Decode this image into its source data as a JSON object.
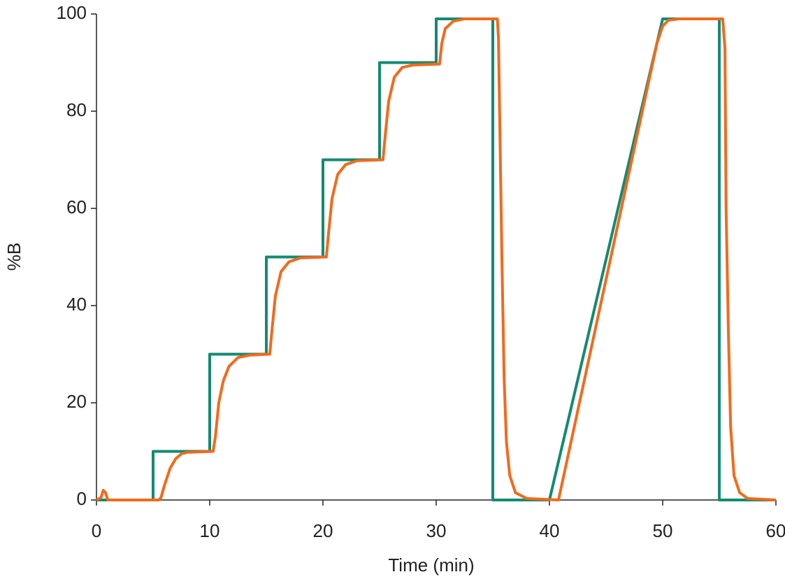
{
  "chart_data": {
    "type": "line",
    "xlabel": "Time (min)",
    "ylabel": "%B",
    "xlim": [
      0,
      60
    ],
    "xticks": [
      0,
      10,
      20,
      30,
      40,
      50,
      60
    ],
    "ylim": [
      0,
      100
    ],
    "yticks": [
      0,
      20,
      40,
      60,
      80,
      100
    ],
    "grid": false,
    "series": [
      {
        "color": "#148a72",
        "x": [
          0,
          5,
          5,
          10,
          10,
          15,
          15,
          20,
          20,
          25,
          25,
          30,
          30,
          35,
          35,
          40,
          50,
          55,
          55,
          60
        ],
        "values": [
          0,
          0,
          10,
          10,
          30,
          30,
          50,
          50,
          70,
          70,
          90,
          90,
          99,
          99,
          0,
          0,
          99,
          99,
          0,
          0
        ]
      },
      {
        "color": "#f26a1b",
        "x": [
          0,
          0.4,
          0.6,
          0.8,
          1.0,
          5.5,
          5.7,
          6,
          6.5,
          7,
          7.5,
          8,
          10.3,
          10.5,
          10.8,
          11.2,
          11.7,
          12.5,
          13.5,
          15.3,
          15.5,
          15.8,
          16.3,
          17,
          18,
          20.3,
          20.5,
          20.8,
          21.3,
          22,
          23,
          25.3,
          25.5,
          25.8,
          26.3,
          27,
          28,
          30.3,
          30.5,
          30.8,
          31.5,
          32.5,
          35.4,
          35.5,
          35.6,
          35.8,
          36,
          36.2,
          36.5,
          37,
          38,
          40.8,
          49.5,
          50,
          50.5,
          51.5,
          55.3,
          55.5,
          55.6,
          55.8,
          56,
          56.3,
          56.8,
          57.5,
          60
        ],
        "values": [
          0,
          0.5,
          2,
          1.5,
          0,
          0,
          0.5,
          3,
          6.5,
          8.5,
          9.5,
          9.8,
          10,
          13,
          20,
          24.5,
          27.5,
          29.3,
          29.8,
          30,
          35,
          42,
          47,
          49,
          49.8,
          50,
          55,
          62,
          67,
          69,
          69.8,
          70,
          75,
          82,
          87,
          89,
          89.5,
          89.7,
          94,
          97,
          98.5,
          99,
          99,
          95,
          80,
          50,
          25,
          12,
          5,
          1.5,
          0.3,
          0,
          94,
          97.5,
          98.7,
          99,
          99,
          93,
          60,
          35,
          15,
          5,
          1.5,
          0.3,
          0
        ]
      }
    ]
  }
}
